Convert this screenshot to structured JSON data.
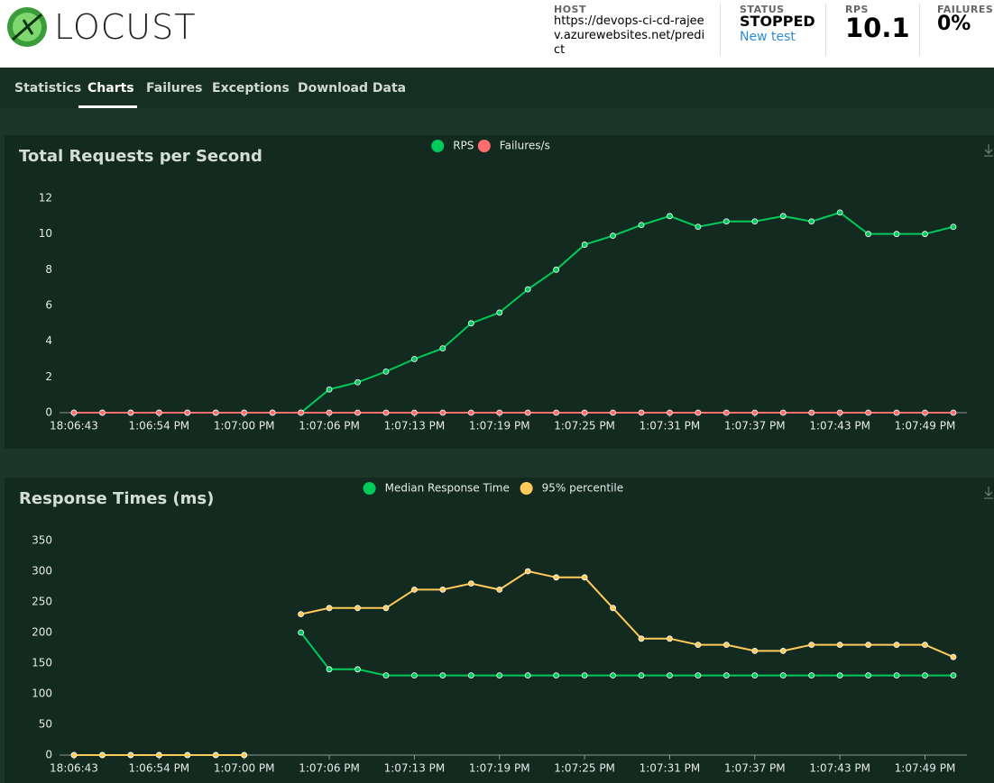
{
  "header": {
    "logo": "LOCUST",
    "host_label": "HOST",
    "host": "https://devops-ci-cd-rajeev.azurewebsites.net/predict",
    "status_label": "STATUS",
    "status": "STOPPED",
    "new_test": "New test",
    "rps_label": "RPS",
    "rps": "10.1",
    "failures_label": "FAILURES",
    "failures": "0%"
  },
  "tabs": [
    "Statistics",
    "Charts",
    "Failures",
    "Exceptions",
    "Download Data"
  ],
  "active_tab": 1,
  "chart_data": [
    {
      "type": "line",
      "title": "Total Requests per Second",
      "categories": [
        "18:06:43",
        null,
        null,
        "1:06:54 PM",
        null,
        null,
        "1:07:00 PM",
        null,
        null,
        "1:07:06 PM",
        null,
        null,
        "1:07:13 PM",
        null,
        null,
        "1:07:19 PM",
        null,
        null,
        "1:07:25 PM",
        null,
        null,
        "1:07:31 PM",
        null,
        null,
        "1:07:37 PM",
        null,
        null,
        "1:07:43 PM",
        null,
        null,
        "1:07:49 PM",
        null
      ],
      "series": [
        {
          "name": "RPS",
          "color": "#00ca5a",
          "values": [
            0,
            0,
            0,
            0,
            0,
            0,
            0,
            0,
            0,
            1.3,
            1.7,
            2.3,
            3.0,
            3.6,
            5.0,
            5.6,
            6.9,
            8.0,
            9.4,
            9.9,
            10.5,
            11.0,
            10.4,
            10.7,
            10.7,
            11.0,
            10.7,
            11.2,
            10.0,
            10.0,
            10.0,
            10.4
          ]
        },
        {
          "name": "Failures/s",
          "color": "#ff6d6d",
          "values": [
            0,
            0,
            0,
            0,
            0,
            0,
            0,
            0,
            0,
            0,
            0,
            0,
            0,
            0,
            0,
            0,
            0,
            0,
            0,
            0,
            0,
            0,
            0,
            0,
            0,
            0,
            0,
            0,
            0,
            0,
            0,
            0
          ]
        }
      ],
      "ylim": [
        0,
        12
      ],
      "yticks": [
        0,
        2,
        4,
        6,
        8,
        10,
        12
      ],
      "legend": "top"
    },
    {
      "type": "line",
      "title": "Response Times (ms)",
      "categories": [
        "18:06:43",
        null,
        null,
        "1:06:54 PM",
        null,
        null,
        "1:07:00 PM",
        null,
        null,
        "1:07:06 PM",
        null,
        null,
        "1:07:13 PM",
        null,
        null,
        "1:07:19 PM",
        null,
        null,
        "1:07:25 PM",
        null,
        null,
        "1:07:31 PM",
        null,
        null,
        "1:07:37 PM",
        null,
        null,
        "1:07:43 PM",
        null,
        null,
        "1:07:49 PM",
        null
      ],
      "series": [
        {
          "name": "Median Response Time",
          "color": "#00ca5a",
          "values": [
            0,
            0,
            0,
            0,
            0,
            0,
            0,
            null,
            200,
            140,
            140,
            130,
            130,
            130,
            130,
            130,
            130,
            130,
            130,
            130,
            130,
            130,
            130,
            130,
            130,
            130,
            130,
            130,
            130,
            130,
            130,
            130
          ]
        },
        {
          "name": "95% percentile",
          "color": "#ffca5a",
          "values": [
            0,
            0,
            0,
            0,
            0,
            0,
            0,
            null,
            230,
            240,
            240,
            240,
            270,
            270,
            280,
            270,
            300,
            290,
            290,
            240,
            190,
            190,
            180,
            180,
            170,
            170,
            180,
            180,
            180,
            180,
            180,
            160
          ]
        }
      ],
      "ylim": [
        0,
        350
      ],
      "yticks": [
        0,
        50,
        100,
        150,
        200,
        250,
        300,
        350
      ],
      "legend": "top"
    }
  ]
}
